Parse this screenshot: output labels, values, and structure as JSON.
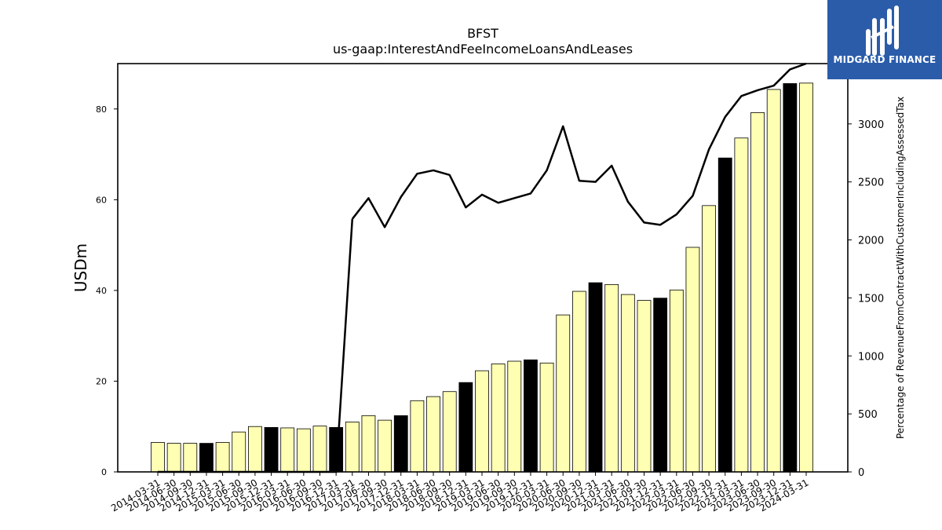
{
  "logo": {
    "text": "MIDGARD FINANCE",
    "color": "#2a5caa"
  },
  "chart_data": {
    "type": "bar",
    "title": "BFST",
    "subtitle": "us-gaap:InterestAndFeeIncomeLoansAndLeases",
    "ylabel": "USDm",
    "y2label": "Percentage of RevenueFromContractWithCustomerIncludingAssessedTax",
    "ylim": [
      0,
      90
    ],
    "y2lim": [
      0,
      3520
    ],
    "yticks": [
      0,
      20,
      40,
      60,
      80
    ],
    "y2ticks": [
      0,
      500,
      1000,
      1500,
      2000,
      2500,
      3000
    ],
    "categories": [
      "2014-03-31",
      "2014-06-30",
      "2014-09-30",
      "2014-12-31",
      "2015-03-31",
      "2015-06-30",
      "2015-09-30",
      "2015-12-31",
      "2016-03-31",
      "2016-06-30",
      "2016-09-30",
      "2016-12-31",
      "2017-03-31",
      "2017-06-30",
      "2017-09-30",
      "2017-12-31",
      "2018-03-31",
      "2018-06-30",
      "2018-09-30",
      "2018-12-31",
      "2019-03-31",
      "2019-06-30",
      "2019-09-30",
      "2019-12-31",
      "2020-03-31",
      "2020-06-30",
      "2020-09-30",
      "2020-12-31",
      "2021-03-31",
      "2021-06-30",
      "2021-09-30",
      "2021-12-31",
      "2022-03-31",
      "2022-06-30",
      "2022-09-30",
      "2022-12-31",
      "2023-03-31",
      "2023-06-30",
      "2023-09-30",
      "2023-12-31",
      "2024-03-31"
    ],
    "series": [
      {
        "type": "bar",
        "values": [
          6.5,
          6.3,
          6.3,
          6.3,
          6.5,
          8.8,
          10.0,
          9.8,
          9.7,
          9.5,
          10.1,
          9.8,
          11.0,
          12.4,
          11.4,
          12.4,
          15.7,
          16.6,
          17.7,
          19.7,
          22.3,
          23.8,
          24.4,
          24.7,
          24.0,
          34.6,
          39.8,
          41.7,
          41.3,
          39.1,
          37.8,
          38.3,
          40.1,
          49.5,
          58.7,
          69.2,
          73.6,
          79.2,
          84.3,
          85.6,
          85.7
        ],
        "quarter_end_black": [
          false,
          false,
          false,
          true,
          false,
          false,
          false,
          true,
          false,
          false,
          false,
          true,
          false,
          false,
          false,
          true,
          false,
          false,
          false,
          true,
          false,
          false,
          false,
          true,
          false,
          false,
          false,
          true,
          false,
          false,
          false,
          true,
          false,
          false,
          false,
          true,
          false,
          false,
          false,
          true,
          false
        ]
      },
      {
        "type": "line",
        "axis": "right",
        "values": [
          null,
          null,
          null,
          null,
          null,
          null,
          null,
          null,
          null,
          null,
          null,
          null,
          2180,
          2360,
          2110,
          2370,
          2570,
          2600,
          2560,
          2280,
          2390,
          2320,
          2360,
          2400,
          2600,
          2980,
          2510,
          2500,
          2640,
          2330,
          2150,
          2130,
          2220,
          2380,
          2780,
          3060,
          3240,
          3290,
          3330,
          3470,
          3520
        ]
      }
    ],
    "colors": {
      "bar": "#ffffb3",
      "bar_highlight": "#000000",
      "line": "#000000"
    }
  }
}
